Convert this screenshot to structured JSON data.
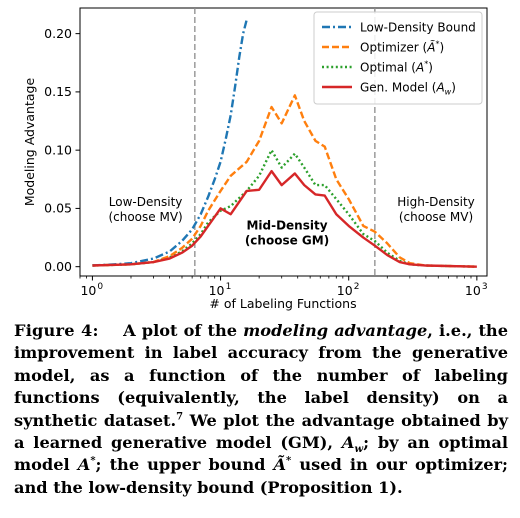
{
  "chart_data": {
    "type": "line",
    "xlabel": "# of Labeling Functions",
    "ylabel": "Modeling Advantage",
    "x_scale": "log",
    "xlim": [
      0.8,
      1200
    ],
    "ylim": [
      -0.008,
      0.222
    ],
    "x_ticks": [
      {
        "value": 1,
        "label": "10",
        "exp": "0"
      },
      {
        "value": 10,
        "label": "10",
        "exp": "1"
      },
      {
        "value": 100,
        "label": "10",
        "exp": "2"
      },
      {
        "value": 1000,
        "label": "10",
        "exp": "3"
      }
    ],
    "y_ticks": [
      {
        "value": 0,
        "label": "0.00"
      },
      {
        "value": 0.05,
        "label": "0.05"
      },
      {
        "value": 0.1,
        "label": "0.10"
      },
      {
        "value": 0.15,
        "label": "0.15"
      },
      {
        "value": 0.2,
        "label": "0.20"
      }
    ],
    "vlines": [
      6.3,
      160
    ],
    "legend_position": "top-right",
    "series": [
      {
        "name": "Low-Density Bound",
        "color": "#1f77b4",
        "dash": "dashdot",
        "points": [
          [
            1,
            0.001
          ],
          [
            1.5,
            0.002
          ],
          [
            2,
            0.003
          ],
          [
            3,
            0.007
          ],
          [
            4,
            0.013
          ],
          [
            5,
            0.022
          ],
          [
            6,
            0.032
          ],
          [
            7,
            0.045
          ],
          [
            8,
            0.06
          ],
          [
            9,
            0.075
          ],
          [
            10,
            0.09
          ],
          [
            11,
            0.11
          ],
          [
            12,
            0.13
          ],
          [
            13,
            0.155
          ],
          [
            14,
            0.18
          ],
          [
            15,
            0.2
          ],
          [
            16,
            0.212
          ]
        ]
      },
      {
        "name": "Optimizer (Ã*)",
        "label_main": "Optimizer (",
        "label_sym": "Ã",
        "label_sup": "*",
        "label_end": ")",
        "color": "#ff7f0e",
        "dash": "dashed",
        "points": [
          [
            1,
            0.001
          ],
          [
            2,
            0.002
          ],
          [
            3,
            0.004
          ],
          [
            4,
            0.009
          ],
          [
            5,
            0.016
          ],
          [
            6,
            0.024
          ],
          [
            7,
            0.035
          ],
          [
            8,
            0.048
          ],
          [
            10,
            0.065
          ],
          [
            12,
            0.078
          ],
          [
            16,
            0.09
          ],
          [
            20,
            0.108
          ],
          [
            25,
            0.137
          ],
          [
            30,
            0.123
          ],
          [
            38,
            0.147
          ],
          [
            45,
            0.125
          ],
          [
            55,
            0.108
          ],
          [
            65,
            0.103
          ],
          [
            80,
            0.075
          ],
          [
            100,
            0.058
          ],
          [
            130,
            0.035
          ],
          [
            160,
            0.03
          ],
          [
            200,
            0.02
          ],
          [
            250,
            0.008
          ],
          [
            300,
            0.003
          ],
          [
            400,
            0.001
          ],
          [
            1000,
            0.0
          ]
        ]
      },
      {
        "name": "Optimal (A*)",
        "label_main": "Optimal (",
        "label_sym": "A",
        "label_sup": "*",
        "label_end": ")",
        "color": "#2ca02c",
        "dash": "dotted",
        "points": [
          [
            1,
            0.001
          ],
          [
            2,
            0.002
          ],
          [
            3,
            0.004
          ],
          [
            4,
            0.008
          ],
          [
            5,
            0.013
          ],
          [
            6,
            0.02
          ],
          [
            7,
            0.028
          ],
          [
            8,
            0.038
          ],
          [
            10,
            0.048
          ],
          [
            12,
            0.052
          ],
          [
            16,
            0.065
          ],
          [
            20,
            0.078
          ],
          [
            25,
            0.1
          ],
          [
            30,
            0.085
          ],
          [
            38,
            0.097
          ],
          [
            45,
            0.085
          ],
          [
            55,
            0.07
          ],
          [
            65,
            0.07
          ],
          [
            80,
            0.058
          ],
          [
            100,
            0.045
          ],
          [
            130,
            0.028
          ],
          [
            160,
            0.022
          ],
          [
            200,
            0.012
          ],
          [
            250,
            0.005
          ],
          [
            300,
            0.002
          ],
          [
            400,
            0.001
          ],
          [
            1000,
            0.0
          ]
        ]
      },
      {
        "name": "Gen. Model (Aw)",
        "label_main": "Gen. Model (",
        "label_sym": "A",
        "label_sub": "w",
        "label_end": ")",
        "color": "#d62728",
        "dash": "solid",
        "points": [
          [
            1,
            0.001
          ],
          [
            2,
            0.002
          ],
          [
            3,
            0.004
          ],
          [
            4,
            0.007
          ],
          [
            5,
            0.012
          ],
          [
            6,
            0.018
          ],
          [
            7,
            0.026
          ],
          [
            8,
            0.035
          ],
          [
            10,
            0.05
          ],
          [
            12,
            0.045
          ],
          [
            16,
            0.065
          ],
          [
            20,
            0.066
          ],
          [
            25,
            0.082
          ],
          [
            30,
            0.07
          ],
          [
            38,
            0.08
          ],
          [
            45,
            0.07
          ],
          [
            55,
            0.062
          ],
          [
            65,
            0.061
          ],
          [
            80,
            0.045
          ],
          [
            100,
            0.035
          ],
          [
            130,
            0.025
          ],
          [
            160,
            0.018
          ],
          [
            200,
            0.01
          ],
          [
            250,
            0.004
          ],
          [
            300,
            0.002
          ],
          [
            400,
            0.001
          ],
          [
            1000,
            0.0
          ]
        ]
      }
    ],
    "annotations": [
      {
        "lines": [
          "Low-Density",
          "(choose MV)"
        ],
        "x": 2.6,
        "y": 0.052,
        "bold": false
      },
      {
        "lines": [
          "Mid-Density",
          "(choose GM)"
        ],
        "x": 33,
        "y": 0.032,
        "bold": true
      },
      {
        "lines": [
          "High-Density",
          "(choose MV)"
        ],
        "x": 480,
        "y": 0.052,
        "bold": false
      }
    ]
  },
  "caption": {
    "figure_label": "Figure 4:",
    "part1": "A plot of the ",
    "emph": "modeling advantage",
    "part2": ", i.e., the improvement in label accuracy from the generative model, as a function of the number of labeling functions (equivalently, the label density) on a synthetic dataset.",
    "footnote_mark": "7",
    "part3": " We plot the advantage obtained by a learned generative model (GM), ",
    "sym_aw": "A",
    "sym_aw_sub": "w",
    "part4": "; by an optimal model ",
    "sym_astar": "A",
    "sym_astar_sup": "*",
    "part5": "; the upper bound ",
    "sym_atilde": "Ã",
    "sym_atilde_sup": "*",
    "part6": " used in our optimizer; and the low-density bound (Proposition 1)."
  }
}
